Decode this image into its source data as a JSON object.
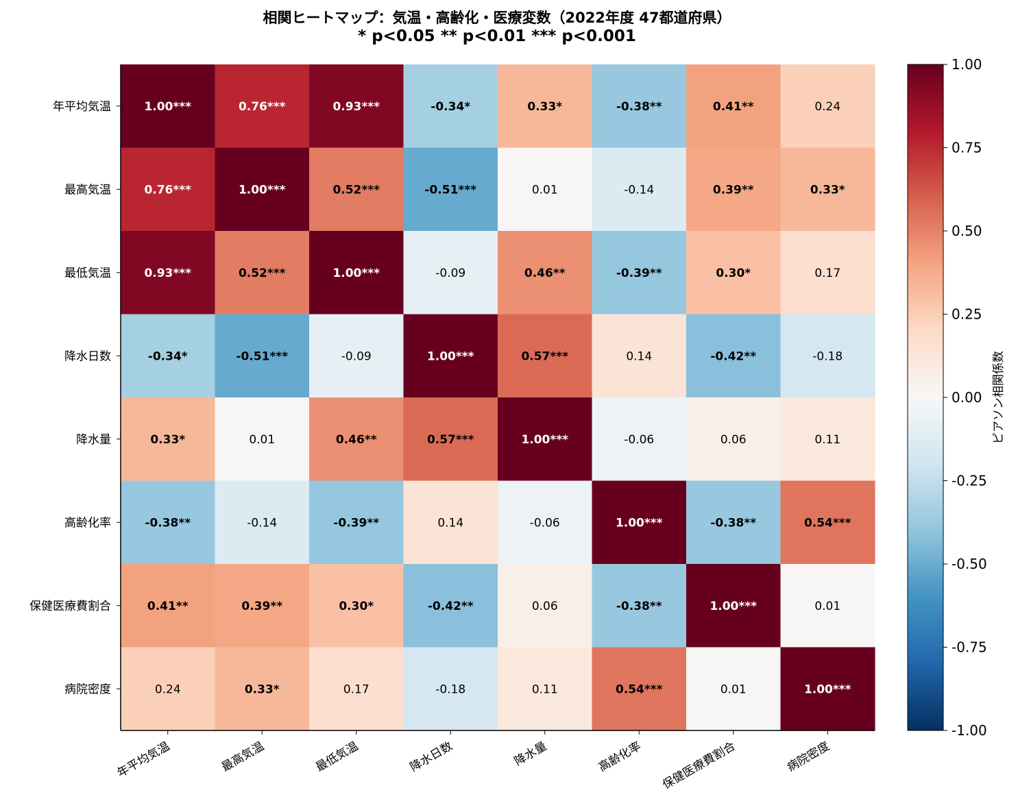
{
  "chart_data": {
    "type": "heatmap",
    "title": "相関ヒートマップ：気温・高齢化・医療変数（2022年度 47都道府県）",
    "subtitle": "* p<0.05  ** p<0.01  *** p<0.001",
    "row_labels": [
      "年平均気温",
      "最高気温",
      "最低気温",
      "降水日数",
      "降水量",
      "高齢化率",
      "保健医療費割合",
      "病院密度"
    ],
    "col_labels": [
      "年平均気温",
      "最高気温",
      "最低気温",
      "降水日数",
      "降水量",
      "高齢化率",
      "保健医療費割合",
      "病院密度"
    ],
    "values": [
      [
        1.0,
        0.76,
        0.93,
        -0.34,
        0.33,
        -0.38,
        0.41,
        0.24
      ],
      [
        0.76,
        1.0,
        0.52,
        -0.51,
        0.01,
        -0.14,
        0.39,
        0.33
      ],
      [
        0.93,
        0.52,
        1.0,
        -0.09,
        0.46,
        -0.39,
        0.3,
        0.17
      ],
      [
        -0.34,
        -0.51,
        -0.09,
        1.0,
        0.57,
        0.14,
        -0.42,
        -0.18
      ],
      [
        0.33,
        0.01,
        0.46,
        0.57,
        1.0,
        -0.06,
        0.06,
        0.11
      ],
      [
        -0.38,
        -0.14,
        -0.39,
        0.14,
        -0.06,
        1.0,
        -0.38,
        0.54
      ],
      [
        0.41,
        0.39,
        0.3,
        -0.42,
        0.06,
        -0.38,
        1.0,
        0.01
      ],
      [
        0.24,
        0.33,
        0.17,
        -0.18,
        0.11,
        0.54,
        0.01,
        1.0
      ]
    ],
    "cell_labels": [
      [
        "1.00***",
        "0.76***",
        "0.93***",
        "-0.34*",
        "0.33*",
        "-0.38**",
        "0.41**",
        "0.24"
      ],
      [
        "0.76***",
        "1.00***",
        "0.52***",
        "-0.51***",
        "0.01",
        "-0.14",
        "0.39**",
        "0.33*"
      ],
      [
        "0.93***",
        "0.52***",
        "1.00***",
        "-0.09",
        "0.46**",
        "-0.39**",
        "0.30*",
        "0.17"
      ],
      [
        "-0.34*",
        "-0.51***",
        "-0.09",
        "1.00***",
        "0.57***",
        "0.14",
        "-0.42**",
        "-0.18"
      ],
      [
        "0.33*",
        "0.01",
        "0.46**",
        "0.57***",
        "1.00***",
        "-0.06",
        "0.06",
        "0.11"
      ],
      [
        "-0.38**",
        "-0.14",
        "-0.39**",
        "0.14",
        "-0.06",
        "1.00***",
        "-0.38**",
        "0.54***"
      ],
      [
        "0.41**",
        "0.39**",
        "0.30*",
        "-0.42**",
        "0.06",
        "-0.38**",
        "1.00***",
        "0.01"
      ],
      [
        "0.24",
        "0.33*",
        "0.17",
        "-0.18",
        "0.11",
        "0.54***",
        "0.01",
        "1.00***"
      ]
    ],
    "colorbar": {
      "label": "ピアソン相関係数",
      "range": [
        -1.0,
        1.0
      ],
      "ticks": [
        "1.00",
        "0.75",
        "0.50",
        "0.25",
        "0.00",
        "-0.25",
        "-0.50",
        "-0.75",
        "-1.00"
      ],
      "colormap": "RdBu_r"
    },
    "grid": false
  }
}
